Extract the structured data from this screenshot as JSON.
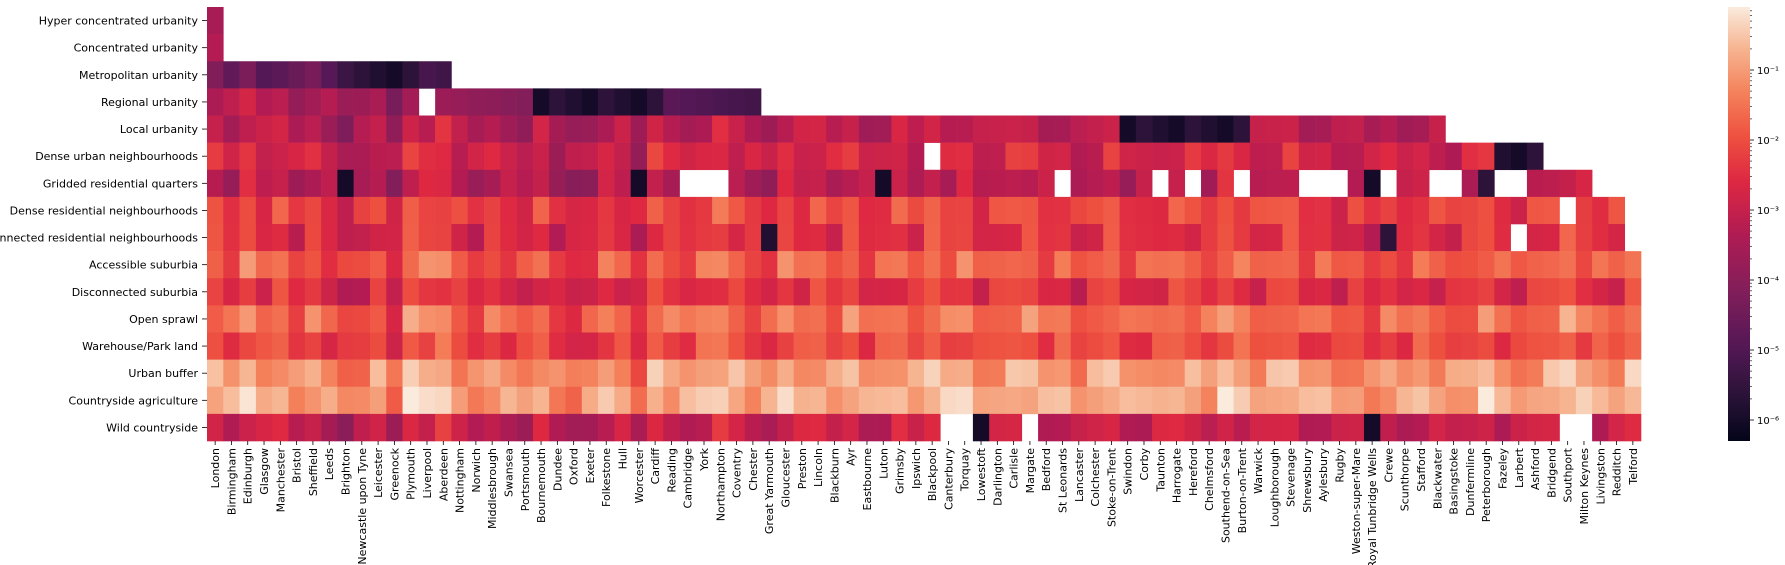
{
  "chart_data": {
    "type": "heatmap",
    "title": "",
    "xlabel": "",
    "ylabel": "",
    "rows": [
      "Hyper concentrated urbanity",
      "Concentrated urbanity",
      "Metropolitan urbanity",
      "Regional urbanity",
      "Local urbanity",
      "Dense urban neighbourhoods",
      "Gridded residential quarters",
      "Dense residential neighbourhoods",
      "Connected residential neighbourhoods",
      "Accessible suburbia",
      "Disconnected suburbia",
      "Open sprawl",
      "Warehouse/Park land",
      "Urban buffer",
      "Countryside agriculture",
      "Wild countryside"
    ],
    "columns": [
      "London",
      "Birmingham",
      "Edinburgh",
      "Glasgow",
      "Manchester",
      "Bristol",
      "Sheffield",
      "Leeds",
      "Brighton",
      "Newcastle upon Tyne",
      "Leicester",
      "Greenock",
      "Plymouth",
      "Liverpool",
      "Aberdeen",
      "Nottingham",
      "Norwich",
      "Middlesbrough",
      "Swansea",
      "Portsmouth",
      "Bournemouth",
      "Dundee",
      "Oxford",
      "Exeter",
      "Folkestone",
      "Hull",
      "Worcester",
      "Cardiff",
      "Reading",
      "Cambridge",
      "York",
      "Northampton",
      "Coventry",
      "Chester",
      "Great Yarmouth",
      "Gloucester",
      "Preston",
      "Lincoln",
      "Blackburn",
      "Ayr",
      "Eastbourne",
      "Luton",
      "Grimsby",
      "Ipswich",
      "Blackpool",
      "Canterbury",
      "Torquay",
      "Lowestoft",
      "Darlington",
      "Carlisle",
      "Margate",
      "Bedford",
      "St Leonards",
      "Lancaster",
      "Colchester",
      "Stoke-on-Trent",
      "Swindon",
      "Corby",
      "Taunton",
      "Harrogate",
      "Hereford",
      "Chelmsford",
      "Southend-on-Sea",
      "Burton-on-Trent",
      "Warwick",
      "Loughborough",
      "Stevenage",
      "Shrewsbury",
      "Aylesbury",
      "Rugby",
      "Weston-super-Mare",
      "Royal Tunbridge Wells",
      "Crewe",
      "Scunthorpe",
      "Stafford",
      "Blackwater",
      "Basingstoke",
      "Dunfermline",
      "Peterborough",
      "Fazeley",
      "Larbert",
      "Ashford",
      "Bridgend",
      "Southport",
      "Milton Keynes",
      "Livingston",
      "Redditch",
      "Telford"
    ],
    "color_scale": "log",
    "colormap": "rocket",
    "vmin_exp": -6.3,
    "vmax_exp": -0.1,
    "colorbar_ticks": [
      {
        "exp": -1,
        "label": "10⁻¹"
      },
      {
        "exp": -2,
        "label": "10⁻²"
      },
      {
        "exp": -3,
        "label": "10⁻³"
      },
      {
        "exp": -4,
        "label": "10⁻⁴"
      },
      {
        "exp": -5,
        "label": "10⁻⁵"
      },
      {
        "exp": -6,
        "label": "10⁻⁶"
      }
    ],
    "row_baseline_log10": [
      -3.5,
      -3.3,
      -4.4,
      -3.1,
      -3.0,
      -2.6,
      -3.0,
      -2.0,
      -2.3,
      -1.6,
      -2.3,
      -1.4,
      -1.9,
      -0.8,
      -0.6,
      -2.8
    ],
    "city_offset_log10": [
      0.0,
      -0.4,
      0.2,
      -0.3,
      0.0,
      -0.5,
      -0.1,
      -0.5,
      -0.8,
      -0.6,
      -0.2,
      -0.9,
      0.3,
      0.1,
      0.2,
      -0.3,
      -0.6,
      -0.2,
      -0.4,
      -0.5,
      -0.1,
      -0.7,
      -0.8,
      -0.6,
      -0.1,
      -0.3,
      -0.9,
      0.1,
      -0.2,
      -0.3,
      0.0,
      0.2,
      -0.1,
      -0.4,
      -0.5,
      0.1,
      -0.2,
      0.0,
      -0.3,
      0.1,
      -0.4,
      -0.2,
      0.0,
      -0.3,
      0.2,
      -0.1,
      0.1,
      -0.4,
      -0.2,
      0.0,
      0.1,
      -0.3,
      -0.1,
      -0.5,
      -0.2,
      0.1,
      -0.4,
      -0.3,
      -0.2,
      0.0,
      -0.1,
      -0.3,
      0.2,
      0.0,
      -0.3,
      -0.1,
      0.1,
      -0.4,
      -0.2,
      -0.5,
      -0.3,
      -0.6,
      -0.2,
      -0.4,
      -0.1,
      -0.3,
      -0.4,
      -0.2,
      0.1,
      -0.3,
      -0.5,
      -0.2,
      0.0,
      0.3,
      -0.1,
      -0.2,
      -0.3,
      0.1
    ],
    "row_extent": [
      1,
      1,
      15,
      34,
      76,
      82,
      85,
      87,
      87,
      88,
      88,
      88,
      88,
      88,
      88,
      88
    ],
    "blank_cells": [
      [
        3,
        13
      ],
      [
        5,
        44
      ],
      [
        6,
        29
      ],
      [
        6,
        30
      ],
      [
        6,
        31
      ],
      [
        6,
        52
      ],
      [
        6,
        58
      ],
      [
        6,
        60
      ],
      [
        6,
        63
      ],
      [
        6,
        67
      ],
      [
        6,
        68
      ],
      [
        6,
        69
      ],
      [
        6,
        72
      ],
      [
        6,
        75
      ],
      [
        6,
        76
      ],
      [
        6,
        79
      ],
      [
        6,
        80
      ],
      [
        7,
        83
      ],
      [
        8,
        80
      ],
      [
        15,
        45
      ],
      [
        15,
        46
      ],
      [
        15,
        50
      ],
      [
        15,
        83
      ],
      [
        15,
        84
      ]
    ],
    "very_low_cells": [
      [
        2,
        9
      ],
      [
        2,
        10
      ],
      [
        2,
        11
      ],
      [
        2,
        12
      ],
      [
        3,
        20
      ],
      [
        3,
        21
      ],
      [
        3,
        22
      ],
      [
        3,
        23
      ],
      [
        3,
        24
      ],
      [
        3,
        25
      ],
      [
        3,
        26
      ],
      [
        3,
        27
      ],
      [
        4,
        56
      ],
      [
        4,
        57
      ],
      [
        4,
        58
      ],
      [
        4,
        59
      ],
      [
        4,
        60
      ],
      [
        4,
        61
      ],
      [
        4,
        62
      ],
      [
        4,
        63
      ],
      [
        5,
        79
      ],
      [
        5,
        80
      ],
      [
        5,
        81
      ],
      [
        6,
        8
      ],
      [
        6,
        26
      ],
      [
        6,
        41
      ],
      [
        6,
        71
      ],
      [
        6,
        78
      ],
      [
        8,
        34
      ],
      [
        8,
        72
      ],
      [
        15,
        47
      ],
      [
        15,
        71
      ]
    ]
  }
}
